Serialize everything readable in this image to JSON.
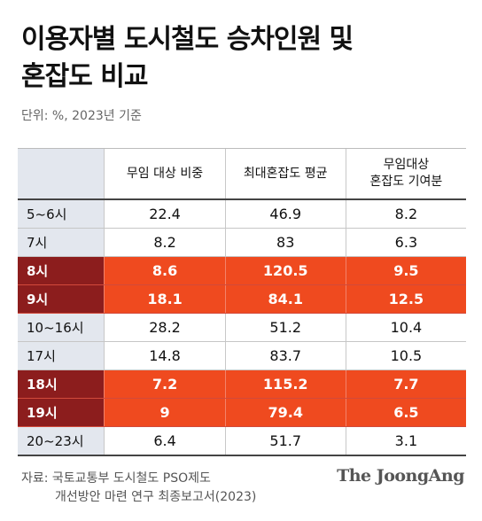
{
  "title": {
    "line1": "이용자별 도시철도 승차인원 및",
    "line2": "혼잡도 비교"
  },
  "unit": "단위: %, 2023년 기준",
  "chart_data": {
    "type": "table",
    "columns": [
      "",
      "무임 대상 비중",
      "최대혼잡도 평균",
      "무임대상\n혼잡도 기여분"
    ],
    "rows": [
      {
        "time": "5~6시",
        "free_share": "22.4",
        "max_congestion": "46.9",
        "free_contribution": "8.2",
        "highlight": false
      },
      {
        "time": "7시",
        "free_share": "8.2",
        "max_congestion": "83",
        "free_contribution": "6.3",
        "highlight": false
      },
      {
        "time": "8시",
        "free_share": "8.6",
        "max_congestion": "120.5",
        "free_contribution": "9.5",
        "highlight": true
      },
      {
        "time": "9시",
        "free_share": "18.1",
        "max_congestion": "84.1",
        "free_contribution": "12.5",
        "highlight": true
      },
      {
        "time": "10~16시",
        "free_share": "28.2",
        "max_congestion": "51.2",
        "free_contribution": "10.4",
        "highlight": false
      },
      {
        "time": "17시",
        "free_share": "14.8",
        "max_congestion": "83.7",
        "free_contribution": "10.5",
        "highlight": false
      },
      {
        "time": "18시",
        "free_share": "7.2",
        "max_congestion": "115.2",
        "free_contribution": "7.7",
        "highlight": true
      },
      {
        "time": "19시",
        "free_share": "9",
        "max_congestion": "79.4",
        "free_contribution": "6.5",
        "highlight": true
      },
      {
        "time": "20~23시",
        "free_share": "6.4",
        "max_congestion": "51.7",
        "free_contribution": "3.1",
        "highlight": false
      }
    ]
  },
  "colors": {
    "highlight_label": "#8c1d1d",
    "highlight_cell": "#ef4a1f",
    "stub_background": "#e3e7ee"
  },
  "source": {
    "line1": "자료: 국토교통부 도시철도 PSO제도",
    "line2": "개선방안 마련 연구 최종보고서(2023)"
  },
  "brand": "The JoongAng"
}
